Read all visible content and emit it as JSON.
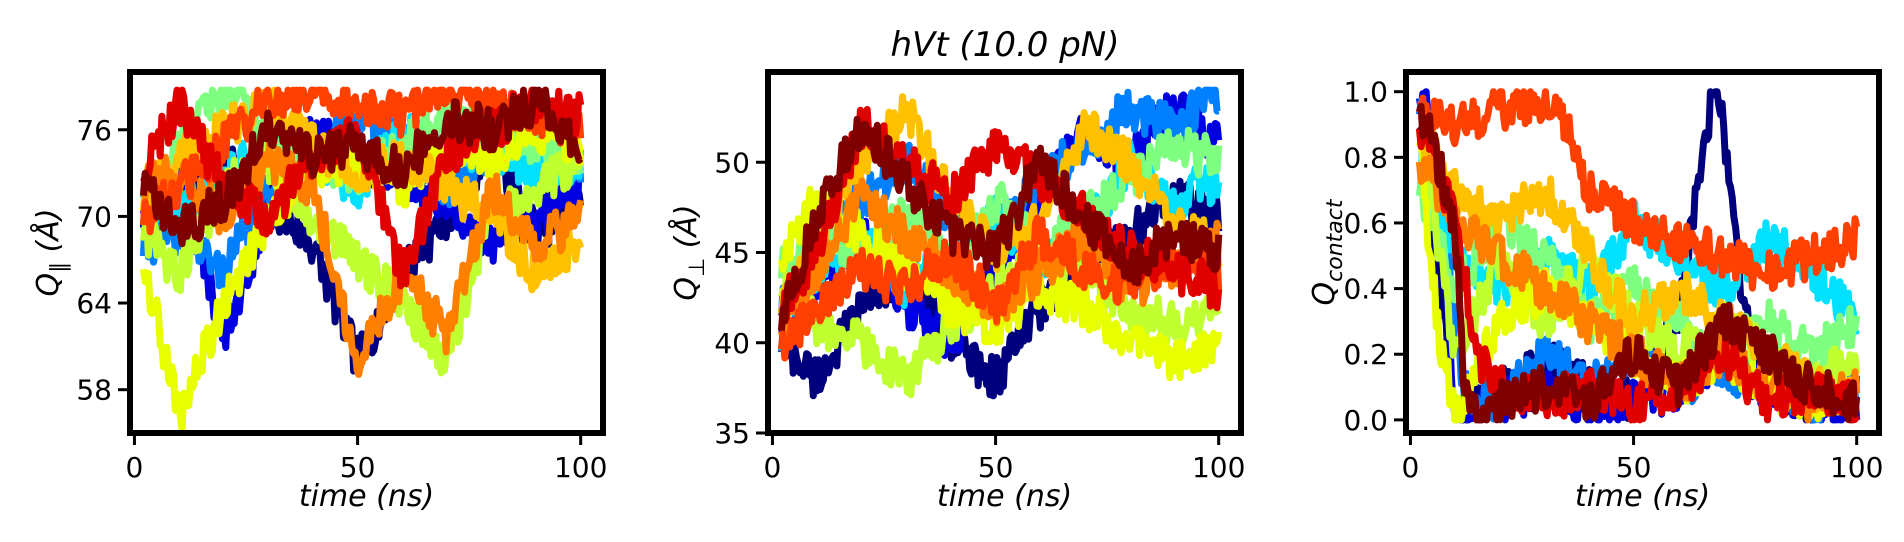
{
  "figure": {
    "title": "hVt (10.0 pN)"
  },
  "chart_data": [
    {
      "type": "line",
      "title": "",
      "xlabel": "time (ns)",
      "ylabel": "Q∥ (Å)",
      "xlim": [
        -1,
        105
      ],
      "ylim": [
        55,
        80
      ],
      "xticks": [
        0,
        50,
        100
      ],
      "yticks": [
        58,
        64,
        70,
        76
      ],
      "ytick_labels": [
        "58",
        "64",
        "70",
        "76"
      ],
      "grid": false,
      "legend": "none",
      "series": [
        {
          "color": "#00007f",
          "x": [
            2,
            10,
            20,
            30,
            40,
            50,
            60,
            70,
            80,
            90,
            100
          ],
          "values": [
            70,
            72,
            74,
            71,
            68,
            60,
            66,
            70,
            75,
            69,
            71
          ]
        },
        {
          "color": "#0000e0",
          "x": [
            2,
            10,
            20,
            30,
            40,
            50,
            60,
            70,
            80,
            90,
            100
          ],
          "values": [
            71,
            73,
            62,
            70,
            76,
            74,
            73,
            71,
            68,
            70,
            72
          ]
        },
        {
          "color": "#0080ff",
          "x": [
            2,
            10,
            20,
            30,
            40,
            50,
            60,
            70,
            80,
            90,
            100
          ],
          "values": [
            68,
            69,
            66,
            72,
            74,
            77,
            75,
            72,
            74,
            76,
            73
          ]
        },
        {
          "color": "#00e0ff",
          "x": [
            2,
            10,
            20,
            30,
            40,
            50,
            60,
            70,
            80,
            90,
            100
          ],
          "values": [
            72,
            70,
            73,
            75,
            74,
            72,
            76,
            74,
            75,
            73,
            74
          ]
        },
        {
          "color": "#7fff7f",
          "x": [
            2,
            10,
            20,
            30,
            40,
            50,
            60,
            70,
            80,
            90,
            100
          ],
          "values": [
            70,
            75,
            79,
            76,
            74,
            73,
            75,
            77,
            76,
            75,
            74
          ]
        },
        {
          "color": "#c0ff30",
          "x": [
            2,
            10,
            20,
            30,
            40,
            50,
            60,
            70,
            80,
            90,
            100
          ],
          "values": [
            69,
            66,
            72,
            74,
            70,
            67,
            64,
            60,
            70,
            72,
            74
          ]
        },
        {
          "color": "#e8ff00",
          "x": [
            2,
            10,
            20,
            30,
            40,
            50,
            60,
            70,
            80,
            90,
            100
          ],
          "values": [
            67,
            56,
            64,
            70,
            73,
            74,
            72,
            75,
            74,
            76,
            75
          ]
        },
        {
          "color": "#ffc000",
          "x": [
            2,
            10,
            20,
            30,
            40,
            50,
            60,
            70,
            80,
            90,
            100
          ],
          "values": [
            71,
            74,
            76,
            78,
            75,
            73,
            74,
            72,
            70,
            66,
            68
          ]
        },
        {
          "color": "#ff8000",
          "x": [
            2,
            10,
            20,
            30,
            40,
            50,
            60,
            70,
            80,
            90,
            100
          ],
          "values": [
            72,
            73,
            70,
            74,
            72,
            60,
            66,
            62,
            72,
            68,
            70
          ]
        },
        {
          "color": "#ff4000",
          "x": [
            2,
            10,
            20,
            30,
            40,
            50,
            60,
            70,
            80,
            90,
            100
          ],
          "values": [
            70,
            72,
            75,
            78,
            79,
            78,
            77,
            79,
            78,
            77,
            76
          ]
        },
        {
          "color": "#e00000",
          "x": [
            2,
            10,
            20,
            30,
            40,
            50,
            60,
            70,
            80,
            90,
            100
          ],
          "values": [
            73,
            78,
            72,
            70,
            74,
            76,
            66,
            74,
            76,
            78,
            77
          ]
        },
        {
          "color": "#7f0000",
          "x": [
            2,
            10,
            20,
            30,
            40,
            50,
            60,
            70,
            80,
            90,
            100
          ],
          "values": [
            72,
            69,
            71,
            76,
            74,
            75,
            73,
            77,
            76,
            78,
            75
          ]
        }
      ]
    },
    {
      "type": "line",
      "title": "",
      "xlabel": "time (ns)",
      "ylabel": "Q⊥ (Å)",
      "xlim": [
        -1,
        105
      ],
      "ylim": [
        35,
        55
      ],
      "xticks": [
        0,
        50,
        100
      ],
      "yticks": [
        35,
        40,
        45,
        50
      ],
      "ytick_labels": [
        "35",
        "40",
        "45",
        "50"
      ],
      "grid": false,
      "legend": "none",
      "series": [
        {
          "color": "#00007f",
          "x": [
            2,
            10,
            20,
            30,
            40,
            50,
            60,
            70,
            80,
            90,
            100
          ],
          "values": [
            40,
            38,
            42,
            44,
            40,
            38,
            42,
            44,
            46,
            48,
            47
          ]
        },
        {
          "color": "#0000e0",
          "x": [
            2,
            10,
            20,
            30,
            40,
            50,
            60,
            70,
            80,
            90,
            100
          ],
          "values": [
            41,
            43,
            46,
            42,
            40,
            44,
            48,
            52,
            50,
            53,
            51
          ]
        },
        {
          "color": "#0080ff",
          "x": [
            2,
            10,
            20,
            30,
            40,
            50,
            60,
            70,
            80,
            90,
            100
          ],
          "values": [
            42,
            45,
            48,
            50,
            47,
            46,
            49,
            51,
            53,
            52,
            54
          ]
        },
        {
          "color": "#00e0ff",
          "x": [
            2,
            10,
            20,
            30,
            40,
            50,
            60,
            70,
            80,
            90,
            100
          ],
          "values": [
            40,
            44,
            46,
            43,
            45,
            47,
            44,
            46,
            50,
            48,
            49
          ]
        },
        {
          "color": "#7fff7f",
          "x": [
            2,
            10,
            20,
            30,
            40,
            50,
            60,
            70,
            80,
            90,
            100
          ],
          "values": [
            44,
            46,
            45,
            47,
            44,
            48,
            45,
            47,
            49,
            51,
            50
          ]
        },
        {
          "color": "#c0ff30",
          "x": [
            2,
            10,
            20,
            30,
            40,
            50,
            60,
            70,
            80,
            90,
            100
          ],
          "values": [
            43,
            41,
            40,
            38,
            41,
            43,
            45,
            44,
            42,
            41,
            42
          ]
        },
        {
          "color": "#e8ff00",
          "x": [
            2,
            10,
            20,
            30,
            40,
            50,
            60,
            70,
            80,
            90,
            100
          ],
          "values": [
            45,
            48,
            46,
            44,
            42,
            41,
            43,
            42,
            40,
            39,
            40
          ]
        },
        {
          "color": "#ffc000",
          "x": [
            2,
            10,
            20,
            30,
            40,
            50,
            60,
            70,
            80,
            90,
            100
          ],
          "values": [
            42,
            46,
            50,
            53,
            48,
            45,
            47,
            52,
            50,
            47,
            45
          ]
        },
        {
          "color": "#ff8000",
          "x": [
            2,
            10,
            20,
            30,
            40,
            50,
            60,
            70,
            80,
            90,
            100
          ],
          "values": [
            41,
            44,
            48,
            46,
            44,
            42,
            44,
            46,
            43,
            44,
            46
          ]
        },
        {
          "color": "#ff4000",
          "x": [
            2,
            10,
            20,
            30,
            40,
            50,
            60,
            70,
            80,
            90,
            100
          ],
          "values": [
            40,
            42,
            44,
            43,
            45,
            42,
            46,
            44,
            43,
            45,
            44
          ]
        },
        {
          "color": "#e00000",
          "x": [
            2,
            10,
            20,
            30,
            40,
            50,
            60,
            70,
            80,
            90,
            100
          ],
          "values": [
            42,
            45,
            52,
            50,
            48,
            51,
            49,
            47,
            45,
            44,
            43
          ]
        },
        {
          "color": "#7f0000",
          "x": [
            2,
            10,
            20,
            30,
            40,
            50,
            60,
            70,
            80,
            90,
            100
          ],
          "values": [
            41,
            47,
            52,
            49,
            46,
            45,
            50,
            47,
            44,
            46,
            45
          ]
        }
      ]
    },
    {
      "type": "line",
      "title": "",
      "xlabel": "time (ns)",
      "ylabel": "Qcontact",
      "xlim": [
        -1,
        105
      ],
      "ylim": [
        -0.04,
        1.06
      ],
      "xticks": [
        0,
        50,
        100
      ],
      "yticks": [
        0.0,
        0.2,
        0.4,
        0.6,
        0.8,
        1.0
      ],
      "ytick_labels": [
        "0.0",
        "0.2",
        "0.4",
        "0.6",
        "0.8",
        "1.0"
      ],
      "grid": false,
      "legend": "none",
      "series": [
        {
          "color": "#00007f",
          "x": [
            2,
            5,
            10,
            20,
            30,
            40,
            50,
            60,
            65,
            68,
            70,
            75,
            80,
            90,
            100
          ],
          "values": [
            0.9,
            0.6,
            0.0,
            0.1,
            0.2,
            0.1,
            0.05,
            0.3,
            0.8,
            1.0,
            0.9,
            0.3,
            0.1,
            0.05,
            0.1
          ]
        },
        {
          "color": "#0000e0",
          "x": [
            2,
            5,
            8,
            10,
            20,
            30,
            40,
            50,
            60,
            70,
            80,
            90,
            100
          ],
          "values": [
            1.0,
            0.9,
            0.4,
            0.0,
            0.05,
            0.1,
            0.0,
            0.05,
            0.1,
            0.2,
            0.1,
            0.05,
            0.0
          ]
        },
        {
          "color": "#0080ff",
          "x": [
            2,
            5,
            8,
            12,
            20,
            30,
            40,
            50,
            60,
            70,
            80,
            90,
            100
          ],
          "values": [
            0.95,
            0.85,
            0.5,
            0.1,
            0.05,
            0.2,
            0.1,
            0.2,
            0.1,
            0.15,
            0.1,
            0.05,
            0.1
          ]
        },
        {
          "color": "#00e0ff",
          "x": [
            2,
            10,
            20,
            30,
            40,
            50,
            60,
            70,
            80,
            90,
            100
          ],
          "values": [
            0.8,
            0.5,
            0.4,
            0.5,
            0.4,
            0.6,
            0.5,
            0.4,
            0.55,
            0.45,
            0.3
          ]
        },
        {
          "color": "#7fff7f",
          "x": [
            2,
            10,
            20,
            30,
            40,
            50,
            60,
            70,
            80,
            90,
            100
          ],
          "values": [
            0.7,
            0.4,
            0.6,
            0.5,
            0.3,
            0.4,
            0.3,
            0.2,
            0.3,
            0.2,
            0.3
          ]
        },
        {
          "color": "#c0ff30",
          "x": [
            2,
            10,
            20,
            30,
            40,
            50,
            60,
            70,
            80,
            90,
            100
          ],
          "values": [
            0.9,
            0.2,
            0.5,
            0.3,
            0.5,
            0.3,
            0.2,
            0.3,
            0.2,
            0.1,
            0.2
          ]
        },
        {
          "color": "#e8ff00",
          "x": [
            2,
            6,
            10,
            20,
            30,
            40,
            50,
            60,
            70,
            80,
            90,
            100
          ],
          "values": [
            0.85,
            0.3,
            0.0,
            0.3,
            0.4,
            0.3,
            0.2,
            0.1,
            0.2,
            0.1,
            0.05,
            0.1
          ]
        },
        {
          "color": "#ffc000",
          "x": [
            2,
            10,
            20,
            30,
            40,
            50,
            60,
            70,
            80,
            90,
            100
          ],
          "values": [
            0.9,
            0.7,
            0.6,
            0.7,
            0.5,
            0.3,
            0.4,
            0.3,
            0.2,
            0.1,
            0.05
          ]
        },
        {
          "color": "#ff8000",
          "x": [
            2,
            10,
            20,
            30,
            40,
            50,
            60,
            70,
            80,
            90,
            100
          ],
          "values": [
            0.8,
            0.6,
            0.5,
            0.4,
            0.3,
            0.2,
            0.1,
            0.2,
            0.1,
            0.05,
            0.1
          ]
        },
        {
          "color": "#ff4000",
          "x": [
            2,
            10,
            20,
            30,
            35,
            40,
            50,
            60,
            70,
            80,
            90,
            100
          ],
          "values": [
            0.95,
            0.9,
            0.95,
            0.98,
            0.9,
            0.7,
            0.6,
            0.55,
            0.5,
            0.45,
            0.5,
            0.55
          ]
        },
        {
          "color": "#e00000",
          "x": [
            2,
            10,
            15,
            20,
            30,
            40,
            50,
            60,
            70,
            80,
            90,
            100
          ],
          "values": [
            0.9,
            0.6,
            0.2,
            0.1,
            0.05,
            0.1,
            0.05,
            0.1,
            0.2,
            0.05,
            0.1,
            0.05
          ]
        },
        {
          "color": "#7f0000",
          "x": [
            2,
            5,
            10,
            12,
            15,
            20,
            30,
            40,
            50,
            60,
            70,
            80,
            90,
            100
          ],
          "values": [
            0.95,
            0.85,
            0.6,
            0.1,
            0.0,
            0.05,
            0.1,
            0.05,
            0.2,
            0.1,
            0.3,
            0.2,
            0.1,
            0.05
          ]
        }
      ]
    }
  ]
}
